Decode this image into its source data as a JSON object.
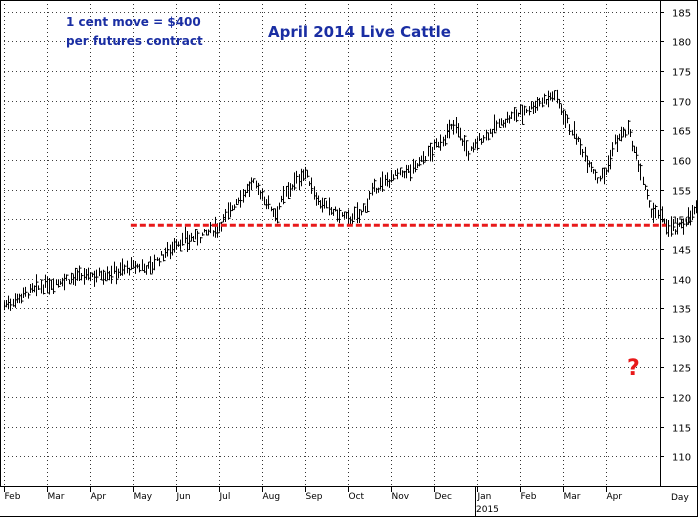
{
  "chart_data": {
    "type": "bar",
    "subtype": "ohlc-daily",
    "title": "April 2014 Live Cattle",
    "annotation": "1 cent move = $400 per futures contract",
    "annotation_lines": [
      "1 cent move = $400",
      "per futures contract"
    ],
    "question_mark": "?",
    "ylim": [
      105,
      187
    ],
    "y_ticks": [
      110,
      115,
      120,
      125,
      130,
      135,
      140,
      145,
      150,
      155,
      160,
      165,
      170,
      175,
      180,
      185
    ],
    "y_axis_side": "right",
    "x_unit_label": "Day",
    "x_months": [
      "Feb",
      "Mar",
      "Apr",
      "May",
      "Jun",
      "Jul",
      "Aug",
      "Sep",
      "Oct",
      "Nov",
      "Dec",
      "Jan",
      "Feb",
      "Mar",
      "Apr"
    ],
    "x_year_label": "2015",
    "grid": true,
    "support_level": 149,
    "support_color": "#e8191a",
    "bar_color": "#000000",
    "title_color": "#1a2ea3",
    "price_path": [
      [
        0,
        135.5
      ],
      [
        0.5,
        137.5
      ],
      [
        1,
        139
      ],
      [
        1.5,
        140
      ],
      [
        2,
        140.5
      ],
      [
        2.5,
        141
      ],
      [
        3,
        142
      ],
      [
        3.4,
        142
      ],
      [
        3.7,
        144
      ],
      [
        4,
        146
      ],
      [
        4.5,
        147
      ],
      [
        4.8,
        148
      ],
      [
        5,
        149
      ],
      [
        5.3,
        152
      ],
      [
        5.5,
        154
      ],
      [
        5.8,
        156
      ],
      [
        6,
        154
      ],
      [
        6.3,
        151
      ],
      [
        6.6,
        155
      ],
      [
        7,
        158
      ],
      [
        7.3,
        153
      ],
      [
        7.5,
        152
      ],
      [
        8,
        150
      ],
      [
        8.3,
        151
      ],
      [
        8.6,
        155
      ],
      [
        9,
        157
      ],
      [
        9.5,
        158.5
      ],
      [
        10,
        162
      ],
      [
        10.5,
        166
      ],
      [
        10.8,
        161
      ],
      [
        11,
        163
      ],
      [
        11.5,
        166
      ],
      [
        12,
        168
      ],
      [
        12.5,
        170
      ],
      [
        12.8,
        171
      ],
      [
        13,
        168
      ],
      [
        13.2,
        165
      ],
      [
        13.5,
        161
      ],
      [
        13.8,
        157
      ],
      [
        14,
        158
      ],
      [
        14.2,
        163
      ],
      [
        14.5,
        165
      ],
      [
        14.8,
        158
      ],
      [
        15,
        152
      ],
      [
        15.3,
        150
      ],
      [
        15.6,
        148
      ],
      [
        16,
        151
      ],
      [
        16.3,
        153
      ],
      [
        16.6,
        150
      ],
      [
        16.8,
        147
      ]
    ],
    "forecast_start": [
      16.85,
      147
    ],
    "forecast_end": [
      18.4,
      125
    ]
  }
}
